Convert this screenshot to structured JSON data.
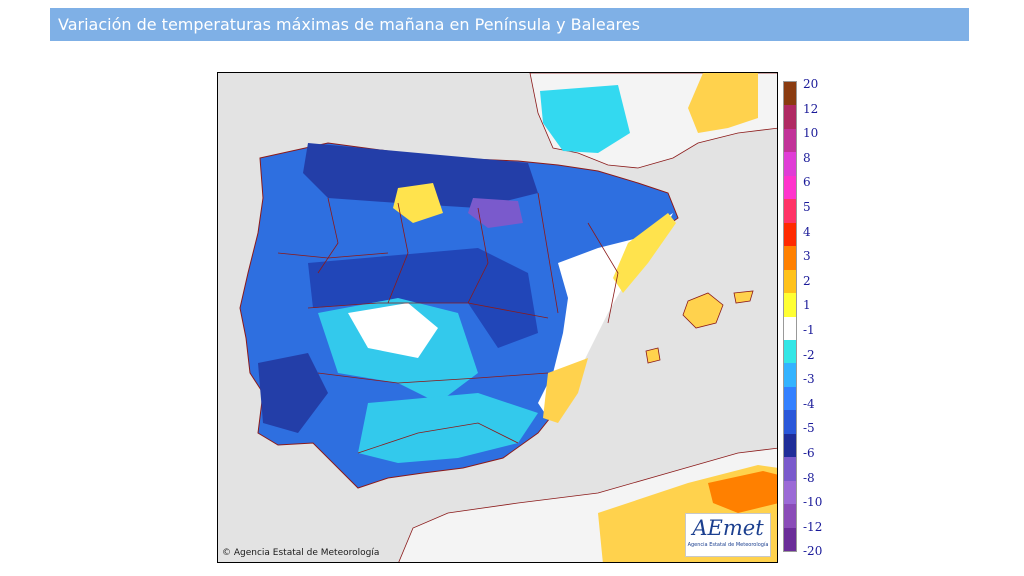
{
  "page": {
    "title": "Variación de temperaturas máximas de mañana en Península y Baleares"
  },
  "map": {
    "credit": "© Agencia Estatal de Meteorología",
    "logo_text": "AEmet",
    "logo_subtext": "Agencia Estatal de Meteorología"
  },
  "legend": {
    "labels": [
      "20",
      "12",
      "10",
      "8",
      "6",
      "5",
      "4",
      "3",
      "2",
      "1",
      "-1",
      "-2",
      "-3",
      "-4",
      "-5",
      "-6",
      "-8",
      "-10",
      "-12",
      "-20"
    ],
    "colors": [
      "#8a3b10",
      "#b02a63",
      "#c23399",
      "#e03dd6",
      "#ff33cc",
      "#ff3366",
      "#ff2a00",
      "#ff8000",
      "#ffc21a",
      "#ffff33",
      "#ffffff",
      "#33e6e6",
      "#33b3ff",
      "#3380ff",
      "#2a57d9",
      "#1f2d99",
      "#7a5acc",
      "#9b6ad6",
      "#8a4cb8",
      "#6b2d99"
    ]
  }
}
